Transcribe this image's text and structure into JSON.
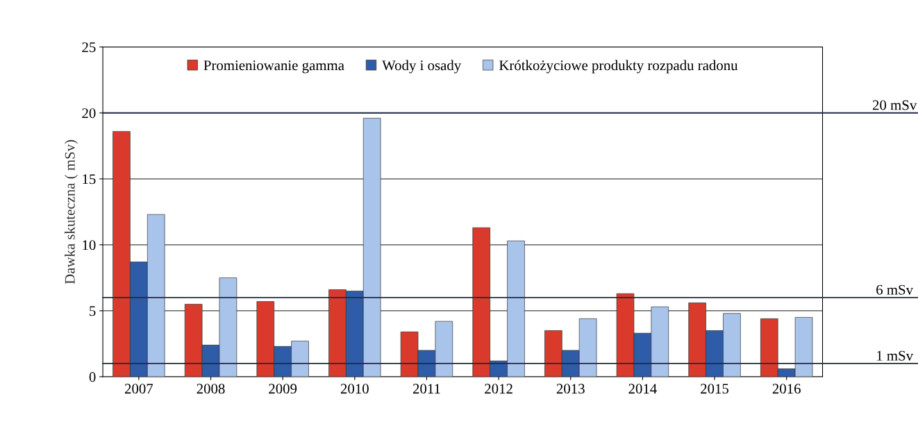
{
  "chart_data": {
    "type": "bar",
    "ylabel": "Dawka skuteczna ( mSv)",
    "categories": [
      "2007",
      "2008",
      "2009",
      "2010",
      "2011",
      "2012",
      "2013",
      "2014",
      "2015",
      "2016"
    ],
    "series": [
      {
        "name": "Promieniowanie gamma",
        "color": "#d93a2b",
        "values": [
          18.6,
          5.5,
          5.7,
          6.6,
          3.4,
          11.3,
          3.5,
          6.3,
          5.6,
          4.4
        ]
      },
      {
        "name": "Wody i osady",
        "color": "#2e5ca8",
        "values": [
          8.7,
          2.4,
          2.3,
          6.5,
          2.0,
          1.2,
          2.0,
          3.3,
          3.5,
          0.6
        ]
      },
      {
        "name": "Krótkożyciowe produkty rozpadu radonu",
        "color": "#a9c4ea",
        "values": [
          12.3,
          7.5,
          2.7,
          19.6,
          4.2,
          10.3,
          4.4,
          5.3,
          4.8,
          4.5
        ]
      }
    ],
    "ylim": [
      0,
      25
    ],
    "yticks": [
      0,
      5,
      10,
      15,
      20,
      25
    ],
    "grid": "y",
    "legend": "top",
    "ref_lines": [
      {
        "axis": "y",
        "value": 20,
        "label": "20 mSv",
        "color": "#1f2a44"
      },
      {
        "axis": "y",
        "value": 6,
        "label": "6 mSv",
        "color": "#1f2a44"
      },
      {
        "axis": "y",
        "value": 1,
        "label": "1 mSv",
        "color": "#1f2a44"
      }
    ]
  }
}
